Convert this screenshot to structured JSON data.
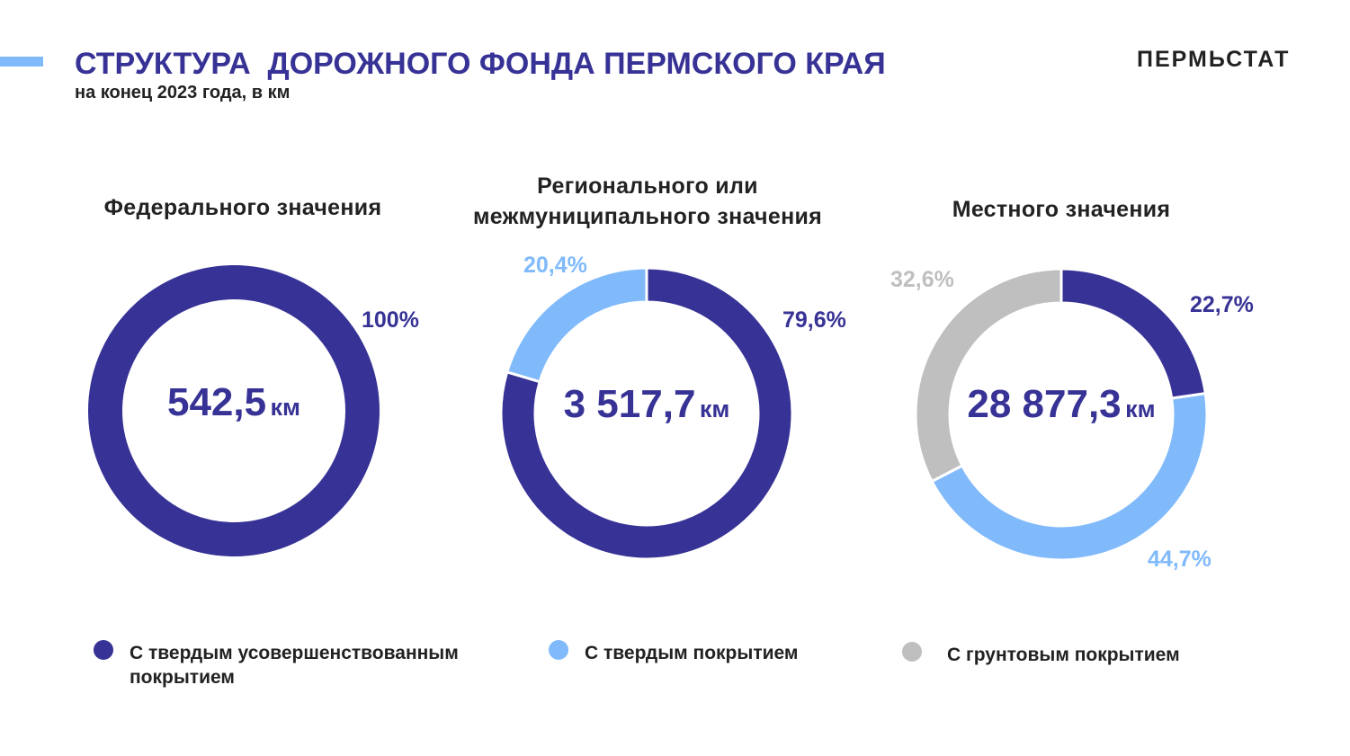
{
  "header": {
    "title": "СТРУКТУРА  ДОРОЖНОГО ФОНДА ПЕРМСКОГО КРАЯ",
    "subtitle": "на конец 2023 года, в км",
    "brand": "ПЕРМЬСТАТ"
  },
  "colors": {
    "improved": "#373295",
    "hard": "#80BAFB",
    "ground": "#BFBFBF",
    "title": "#373295"
  },
  "chart_data": [
    {
      "type": "pie",
      "title": "Федерального значения",
      "total": "542,5",
      "unit": "км",
      "slices": [
        {
          "name": "С твердым усовершенствованным покрытием",
          "value": 100,
          "label": "100%"
        }
      ]
    },
    {
      "type": "pie",
      "title": "Регионального или межмуниципального значения",
      "total": "3 517,7",
      "unit": "км",
      "slices": [
        {
          "name": "С твердым усовершенствованным покрытием",
          "value": 79.6,
          "label": "79,6%"
        },
        {
          "name": "С твердым покрытием",
          "value": 20.4,
          "label": "20,4%"
        }
      ]
    },
    {
      "type": "pie",
      "title": "Местного значения",
      "total": "28 877,3",
      "unit": "км",
      "slices": [
        {
          "name": "С твердым усовершенствованным покрытием",
          "value": 22.7,
          "label": "22,7%"
        },
        {
          "name": "С твердым покрытием",
          "value": 44.7,
          "label": "44,7%"
        },
        {
          "name": "С грунтовым покрытием",
          "value": 32.6,
          "label": "32,6%"
        }
      ]
    }
  ],
  "legend": [
    {
      "label": "С твердым усовершенствованным покрытием"
    },
    {
      "label": "С твердым покрытием"
    },
    {
      "label": "С грунтовым покрытием"
    }
  ]
}
